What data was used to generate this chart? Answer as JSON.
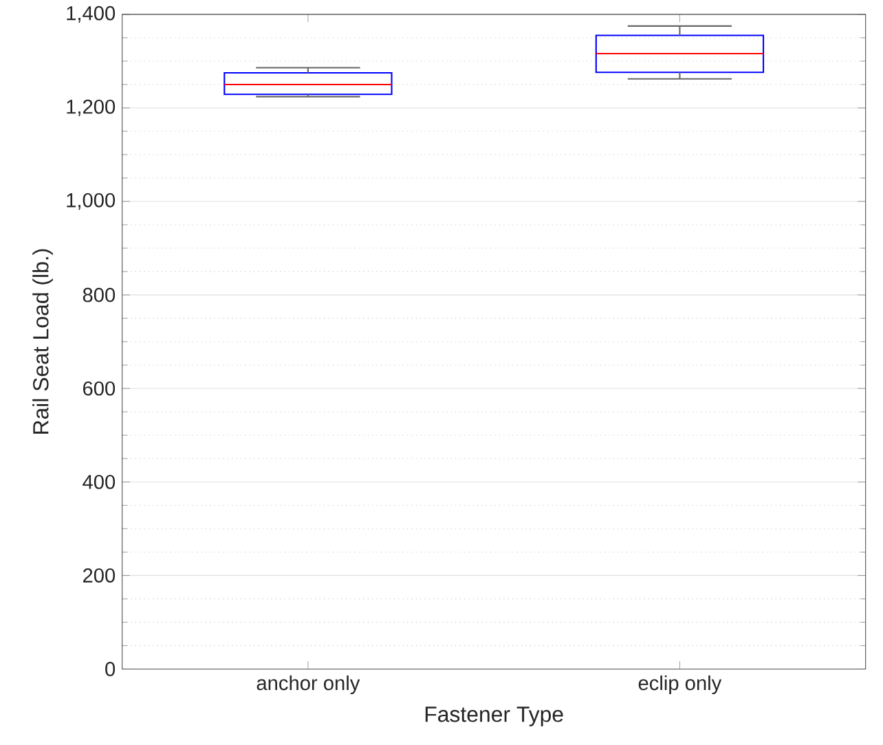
{
  "chart_data": {
    "type": "box",
    "xlabel": "Fastener Type",
    "ylabel": "Rail Seat Load (lb.)",
    "categories": [
      "anchor only",
      "eclip only"
    ],
    "boxes": [
      {
        "low": 1224,
        "q1": 1229,
        "median": 1250,
        "q3": 1275,
        "high": 1286
      },
      {
        "low": 1262,
        "q1": 1276,
        "median": 1316,
        "q3": 1355,
        "high": 1375
      }
    ],
    "color": "#0000ff",
    "ylim": [
      0,
      1400
    ],
    "yticks": [
      {
        "value": 0,
        "label": "0"
      },
      {
        "value": 200,
        "label": "200"
      },
      {
        "value": 400,
        "label": "400"
      },
      {
        "value": 600,
        "label": "600"
      },
      {
        "value": 800,
        "label": "800"
      },
      {
        "value": 1000,
        "label": "1,000"
      },
      {
        "value": 1200,
        "label": "1,200"
      },
      {
        "value": 1400,
        "label": "1,400"
      }
    ],
    "grid": "y"
  }
}
